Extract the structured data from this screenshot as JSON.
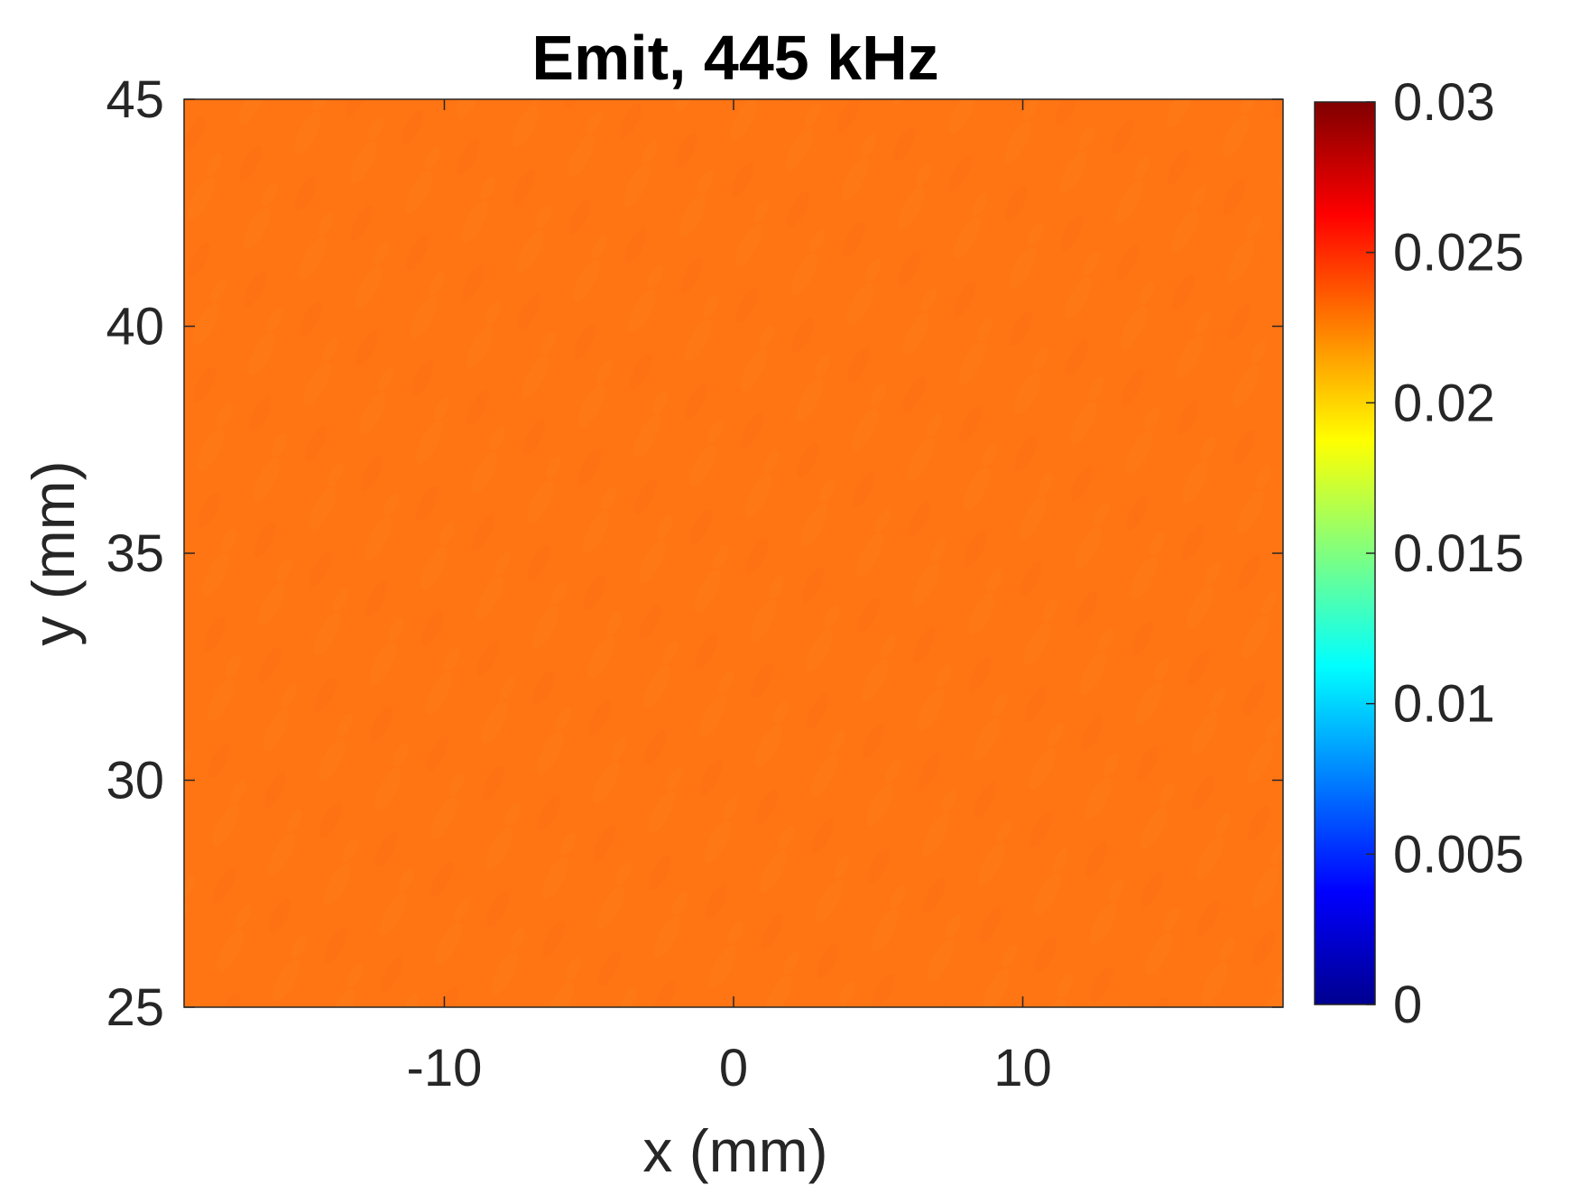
{
  "chart_data": {
    "type": "heatmap",
    "title": "Emit, 445 kHz",
    "xlabel": "x (mm)",
    "ylabel": "y (mm)",
    "xlim": [
      -19,
      19
    ],
    "ylim": [
      25,
      45
    ],
    "x_ticks": [
      -10,
      0,
      10
    ],
    "y_ticks": [
      25,
      30,
      35,
      40,
      45
    ],
    "x_tick_labels": [
      "-10",
      "0",
      "10"
    ],
    "y_tick_labels": [
      "25",
      "30",
      "35",
      "40",
      "45"
    ],
    "colorbar": {
      "colormap": "jet",
      "clim": [
        0,
        0.03
      ],
      "ticks": [
        0,
        0.005,
        0.01,
        0.015,
        0.02,
        0.025,
        0.03
      ],
      "tick_labels": [
        "0",
        "0.005",
        "0.01",
        "0.015",
        "0.02",
        "0.025",
        "0.03"
      ]
    },
    "field": {
      "description_value": "nearly uniform amplitude",
      "mean_value": 0.0235,
      "min_value": 0.0228,
      "max_value": 0.0242
    },
    "colors": {
      "field_base": "#ff7413",
      "frame": "#262626"
    }
  }
}
